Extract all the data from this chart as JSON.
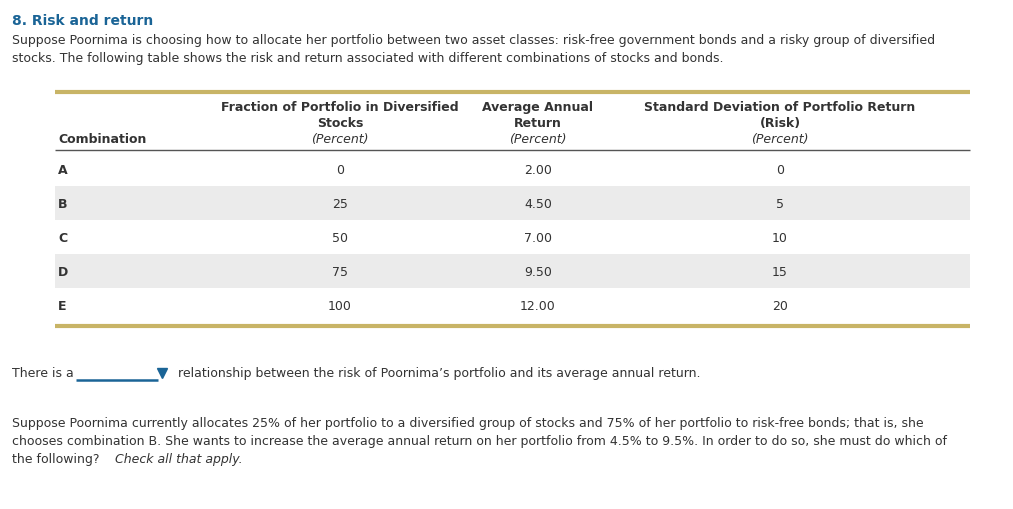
{
  "title": "8. Risk and return",
  "title_color": "#1a6496",
  "intro_text_line1": "Suppose Poornima is choosing how to allocate her portfolio between two asset classes: risk-free government bonds and a risky group of diversified",
  "intro_text_line2": "stocks. The following table shows the risk and return associated with different combinations of stocks and bonds.",
  "col_header1_line1": "Fraction of Portfolio in Diversified",
  "col_header1_line2": "Stocks",
  "col_header2_line1": "Average Annual",
  "col_header2_line2": "Return",
  "col_header3_line1": "Standard Deviation of Portfolio Return",
  "col_header3_line2": "(Risk)",
  "col_header_percent": "(Percent)",
  "row_label": "Combination",
  "combinations": [
    "A",
    "B",
    "C",
    "D",
    "E"
  ],
  "fraction_stocks": [
    "0",
    "25",
    "50",
    "75",
    "100"
  ],
  "avg_annual_return": [
    "2.00",
    "4.50",
    "7.00",
    "9.50",
    "12.00"
  ],
  "std_dev": [
    "0",
    "5",
    "10",
    "15",
    "20"
  ],
  "row_bg_colors": [
    "#ffffff",
    "#ebebeb",
    "#ffffff",
    "#ebebeb",
    "#ffffff"
  ],
  "table_border_color": "#c8b466",
  "header_border_color": "#555555",
  "body_text_color": "#333333",
  "footer_text1": "There is a",
  "footer_text2": "relationship between the risk of Poornima’s portfolio and its average annual return.",
  "dropdown_line_color": "#1a6496",
  "dropdown_arrow_color": "#1a6496",
  "bottom_text_line1": "Suppose Poornima currently allocates 25% of her portfolio to a diversified group of stocks and 75% of her portfolio to risk-free bonds; that is, she",
  "bottom_text_line2": "chooses combination B. She wants to increase the average annual return on her portfolio from 4.5% to 9.5%. In order to do so, she must do which of",
  "bottom_text_line3": "the following?",
  "bottom_text_italic": "Check all that apply.",
  "background_color": "#ffffff",
  "font_family": "DejaVu Sans"
}
